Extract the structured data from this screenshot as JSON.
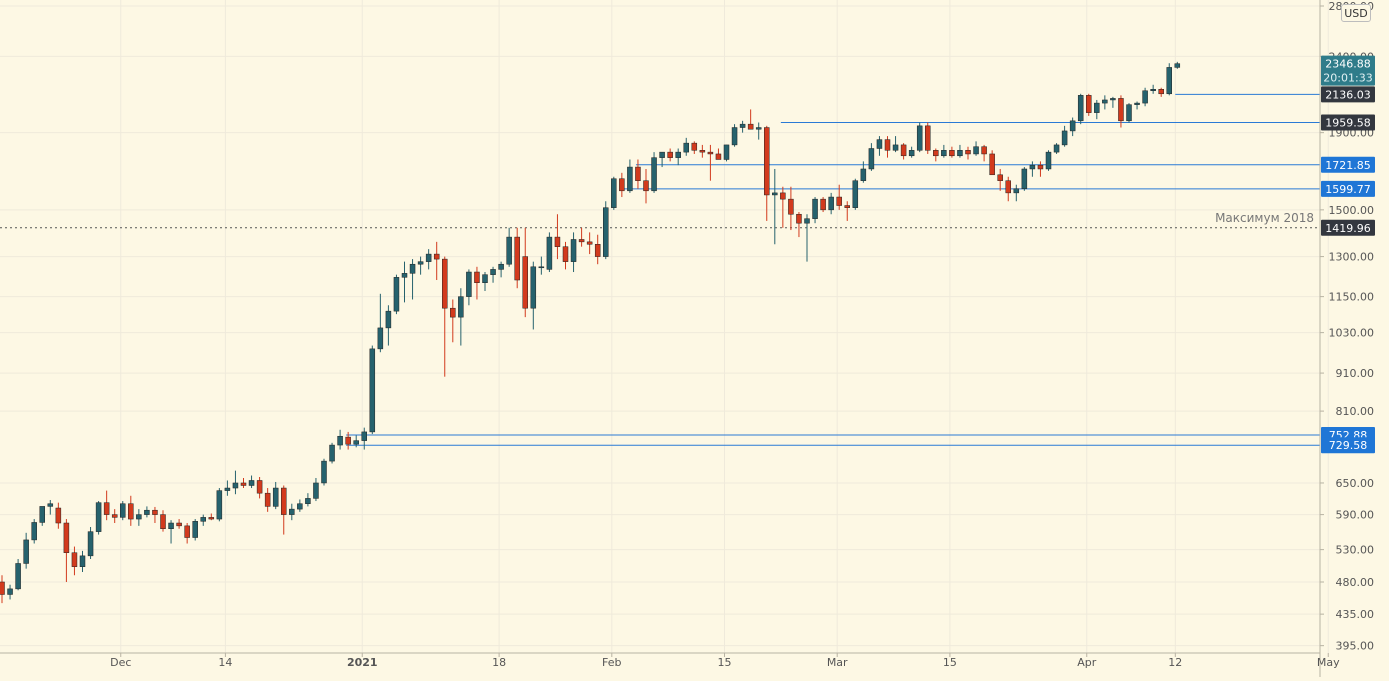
{
  "currency_label": "USD",
  "annotation_label": "Максимум 2018",
  "colors": {
    "background": "#fdf8e4",
    "bull": "#26626d",
    "bear": "#d23a1d",
    "grid": "#efeadb",
    "level_line": "#2a7ad5",
    "level_badge": "#1f76d6",
    "dark_badge": "#33373f",
    "price_badge": "#2f7c8a",
    "axis_text": "#555555"
  },
  "chart_data": {
    "type": "candlestick",
    "scale": "log",
    "ylim": [
      370,
      2800
    ],
    "y_ticks": [
      395,
      435,
      480,
      530,
      590,
      650,
      729.58,
      752.88,
      810,
      910,
      1030,
      1150,
      1300,
      1419.96,
      1500,
      1599.77,
      1721.85,
      1900,
      1959.58,
      2136.03,
      2346.88,
      2400,
      2800
    ],
    "y_tick_labels": [
      "395.00",
      "435.00",
      "480.00",
      "530.00",
      "590.00",
      "650.00",
      "",
      "",
      "810.00",
      "910.00",
      "1030.00",
      "1150.00",
      "1300.00",
      "",
      "1500.00",
      "",
      "",
      "1900.00",
      "",
      "",
      "",
      "2400.00",
      "2800.00"
    ],
    "x_start_date": "2020-11-17",
    "x_labels": [
      {
        "day": 15,
        "text": "Dec"
      },
      {
        "day": 28,
        "text": "14"
      },
      {
        "day": 45,
        "text": "2021",
        "bold": true
      },
      {
        "day": 62,
        "text": "18"
      },
      {
        "day": 76,
        "text": "Feb"
      },
      {
        "day": 90,
        "text": "15"
      },
      {
        "day": 104,
        "text": "Mar"
      },
      {
        "day": 118,
        "text": "15"
      },
      {
        "day": 135,
        "text": "Apr"
      },
      {
        "day": 146,
        "text": "12"
      },
      {
        "day": 165,
        "text": "May"
      }
    ],
    "candles": [
      [
        480,
        490,
        450,
        462
      ],
      [
        462,
        476,
        455,
        470
      ],
      [
        470,
        515,
        468,
        508
      ],
      [
        508,
        558,
        500,
        546
      ],
      [
        546,
        582,
        540,
        576
      ],
      [
        576,
        598,
        570,
        605
      ],
      [
        605,
        617,
        590,
        610
      ],
      [
        602,
        612,
        565,
        575
      ],
      [
        575,
        582,
        480,
        525
      ],
      [
        525,
        535,
        490,
        503
      ],
      [
        503,
        528,
        495,
        520
      ],
      [
        520,
        568,
        515,
        560
      ],
      [
        560,
        615,
        555,
        612
      ],
      [
        612,
        635,
        580,
        590
      ],
      [
        590,
        600,
        575,
        585
      ],
      [
        585,
        615,
        580,
        610
      ],
      [
        610,
        625,
        570,
        582
      ],
      [
        582,
        600,
        570,
        590
      ],
      [
        590,
        605,
        585,
        598
      ],
      [
        598,
        604,
        575,
        590
      ],
      [
        590,
        598,
        560,
        565
      ],
      [
        565,
        580,
        540,
        575
      ],
      [
        575,
        582,
        565,
        570
      ],
      [
        570,
        575,
        540,
        550
      ],
      [
        550,
        582,
        545,
        578
      ],
      [
        578,
        590,
        570,
        585
      ],
      [
        585,
        592,
        580,
        582
      ],
      [
        582,
        640,
        578,
        635
      ],
      [
        635,
        655,
        625,
        640
      ],
      [
        640,
        675,
        628,
        650
      ],
      [
        650,
        660,
        640,
        645
      ],
      [
        645,
        665,
        640,
        655
      ],
      [
        655,
        662,
        620,
        630
      ],
      [
        630,
        640,
        595,
        605
      ],
      [
        605,
        652,
        600,
        640
      ],
      [
        640,
        645,
        555,
        590
      ],
      [
        590,
        610,
        580,
        600
      ],
      [
        600,
        618,
        595,
        610
      ],
      [
        610,
        630,
        605,
        620
      ],
      [
        620,
        660,
        615,
        650
      ],
      [
        650,
        700,
        645,
        695
      ],
      [
        695,
        735,
        690,
        730
      ],
      [
        730,
        765,
        720,
        750
      ],
      [
        748,
        760,
        720,
        732
      ],
      [
        732,
        752,
        725,
        740
      ],
      [
        740,
        770,
        720,
        760
      ],
      [
        760,
        990,
        755,
        980
      ],
      [
        980,
        1160,
        970,
        1045
      ],
      [
        1045,
        1120,
        990,
        1100
      ],
      [
        1100,
        1230,
        1090,
        1220
      ],
      [
        1220,
        1280,
        1130,
        1235
      ],
      [
        1235,
        1290,
        1140,
        1270
      ],
      [
        1270,
        1300,
        1230,
        1280
      ],
      [
        1280,
        1330,
        1250,
        1310
      ],
      [
        1310,
        1360,
        1210,
        1290
      ],
      [
        1290,
        1300,
        900,
        1110
      ],
      [
        1110,
        1140,
        1000,
        1080
      ],
      [
        1080,
        1180,
        990,
        1150
      ],
      [
        1150,
        1250,
        1120,
        1240
      ],
      [
        1240,
        1260,
        1140,
        1200
      ],
      [
        1200,
        1240,
        1170,
        1230
      ],
      [
        1230,
        1260,
        1200,
        1250
      ],
      [
        1250,
        1280,
        1220,
        1270
      ],
      [
        1270,
        1420,
        1260,
        1380
      ],
      [
        1380,
        1420,
        1180,
        1210
      ],
      [
        1300,
        1420,
        1080,
        1110
      ],
      [
        1110,
        1280,
        1040,
        1260
      ],
      [
        1260,
        1300,
        1230,
        1260
      ],
      [
        1250,
        1400,
        1240,
        1380
      ],
      [
        1380,
        1480,
        1290,
        1340
      ],
      [
        1340,
        1360,
        1250,
        1280
      ],
      [
        1280,
        1400,
        1240,
        1370
      ],
      [
        1370,
        1420,
        1340,
        1360
      ],
      [
        1360,
        1400,
        1310,
        1350
      ],
      [
        1350,
        1390,
        1270,
        1300
      ],
      [
        1300,
        1540,
        1290,
        1510
      ],
      [
        1510,
        1660,
        1500,
        1650
      ],
      [
        1650,
        1680,
        1560,
        1590
      ],
      [
        1590,
        1750,
        1580,
        1710
      ],
      [
        1710,
        1750,
        1600,
        1640
      ],
      [
        1640,
        1700,
        1530,
        1590
      ],
      [
        1590,
        1790,
        1580,
        1760
      ],
      [
        1760,
        1790,
        1710,
        1790
      ],
      [
        1790,
        1810,
        1740,
        1760
      ],
      [
        1760,
        1810,
        1720,
        1790
      ],
      [
        1790,
        1870,
        1770,
        1840
      ],
      [
        1840,
        1850,
        1780,
        1800
      ],
      [
        1800,
        1830,
        1760,
        1790
      ],
      [
        1790,
        1830,
        1640,
        1780
      ],
      [
        1780,
        1810,
        1750,
        1750
      ],
      [
        1750,
        1830,
        1740,
        1830
      ],
      [
        1830,
        1950,
        1820,
        1930
      ],
      [
        1930,
        1970,
        1900,
        1950
      ],
      [
        1950,
        2040,
        1920,
        1920
      ],
      [
        1920,
        1960,
        1860,
        1930
      ],
      [
        1930,
        1940,
        1450,
        1570
      ],
      [
        1570,
        1700,
        1350,
        1580
      ],
      [
        1580,
        1610,
        1420,
        1550
      ],
      [
        1550,
        1610,
        1410,
        1480
      ],
      [
        1480,
        1490,
        1380,
        1440
      ],
      [
        1440,
        1480,
        1280,
        1460
      ],
      [
        1460,
        1560,
        1440,
        1550
      ],
      [
        1550,
        1560,
        1490,
        1500
      ],
      [
        1500,
        1580,
        1480,
        1560
      ],
      [
        1560,
        1620,
        1500,
        1520
      ],
      [
        1520,
        1540,
        1450,
        1510
      ],
      [
        1510,
        1650,
        1500,
        1640
      ],
      [
        1640,
        1740,
        1630,
        1700
      ],
      [
        1700,
        1840,
        1690,
        1810
      ],
      [
        1810,
        1880,
        1770,
        1860
      ],
      [
        1860,
        1880,
        1760,
        1800
      ],
      [
        1800,
        1880,
        1790,
        1830
      ],
      [
        1830,
        1840,
        1750,
        1770
      ],
      [
        1770,
        1820,
        1760,
        1800
      ],
      [
        1800,
        1960,
        1790,
        1940
      ],
      [
        1940,
        1960,
        1780,
        1800
      ],
      [
        1800,
        1810,
        1740,
        1770
      ],
      [
        1770,
        1830,
        1760,
        1800
      ],
      [
        1800,
        1820,
        1760,
        1770
      ],
      [
        1770,
        1830,
        1760,
        1800
      ],
      [
        1800,
        1820,
        1750,
        1780
      ],
      [
        1780,
        1850,
        1770,
        1820
      ],
      [
        1820,
        1830,
        1740,
        1780
      ],
      [
        1780,
        1800,
        1680,
        1670
      ],
      [
        1670,
        1700,
        1590,
        1640
      ],
      [
        1640,
        1660,
        1540,
        1580
      ],
      [
        1580,
        1620,
        1540,
        1600
      ],
      [
        1600,
        1710,
        1590,
        1700
      ],
      [
        1700,
        1740,
        1660,
        1720
      ],
      [
        1720,
        1740,
        1660,
        1700
      ],
      [
        1700,
        1800,
        1690,
        1790
      ],
      [
        1790,
        1840,
        1780,
        1830
      ],
      [
        1830,
        1940,
        1820,
        1910
      ],
      [
        1910,
        1990,
        1880,
        1970
      ],
      [
        1970,
        2140,
        1950,
        2130
      ],
      [
        2130,
        2140,
        2000,
        2020
      ],
      [
        2020,
        2100,
        1980,
        2080
      ],
      [
        2080,
        2130,
        2040,
        2100
      ],
      [
        2100,
        2120,
        2050,
        2110
      ],
      [
        2110,
        2130,
        1930,
        1970
      ],
      [
        1970,
        2080,
        1960,
        2070
      ],
      [
        2070,
        2090,
        2040,
        2080
      ],
      [
        2080,
        2180,
        2060,
        2160
      ],
      [
        2160,
        2200,
        2140,
        2170
      ],
      [
        2170,
        2180,
        2120,
        2140
      ],
      [
        2140,
        2350,
        2130,
        2320
      ],
      [
        2320,
        2360,
        2310,
        2346.88
      ]
    ],
    "levels": [
      {
        "value": 2136.03,
        "label": "2136.03",
        "style": "dark",
        "from_day": 146
      },
      {
        "value": 1959.58,
        "label": "1959.58",
        "style": "dark",
        "from_day": 97
      },
      {
        "value": 1721.85,
        "label": "1721.85",
        "style": "blue",
        "from_day": 79
      },
      {
        "value": 1599.77,
        "label": "1599.77",
        "style": "blue",
        "from_day": 77
      },
      {
        "value": 752.88,
        "label": "752.88",
        "style": "blue",
        "from_day": 43
      },
      {
        "value": 729.58,
        "label": "729.58",
        "style": "blue",
        "from_day": 43
      },
      {
        "value": 1419.96,
        "label": "1419.96",
        "style": "dark",
        "from_day": 0,
        "dotted": true
      }
    ],
    "last_price": {
      "value": 2346.88,
      "label": "2346.88",
      "countdown": "20:01:33"
    }
  }
}
